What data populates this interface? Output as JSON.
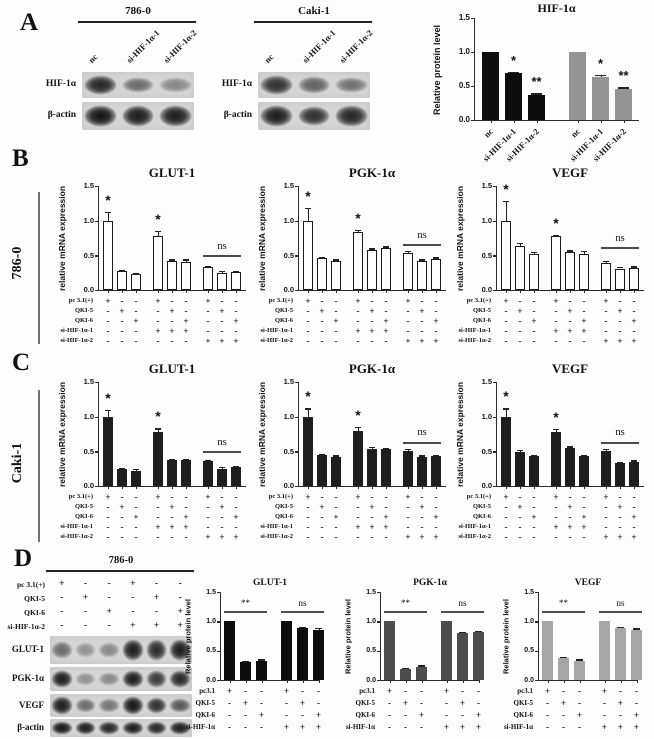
{
  "matrices": {
    "five_row": {
      "rows": [
        {
          "label": "pc 3.1(+)",
          "symbols": [
            "+",
            "-",
            "-",
            "+",
            "-",
            "-",
            "+",
            "-",
            "-"
          ]
        },
        {
          "label": "QKI-5",
          "symbols": [
            "-",
            "+",
            "-",
            "-",
            "+",
            "-",
            "-",
            "+",
            "-"
          ]
        },
        {
          "label": "QKI-6",
          "symbols": [
            "-",
            "-",
            "+",
            "-",
            "-",
            "+",
            "-",
            "-",
            "+"
          ]
        },
        {
          "label": "si-HIF-1α-1",
          "symbols": [
            "-",
            "-",
            "-",
            "+",
            "+",
            "+",
            "-",
            "-",
            "-"
          ]
        },
        {
          "label": "si-HIF-1α-2",
          "symbols": [
            "-",
            "-",
            "-",
            "-",
            "-",
            "-",
            "+",
            "+",
            "+"
          ]
        }
      ]
    },
    "four_row": {
      "rows": [
        {
          "label": "pc3.1",
          "symbols": [
            "+",
            "-",
            "-",
            "+",
            "-",
            "-"
          ]
        },
        {
          "label": "QKI-5",
          "symbols": [
            "-",
            "+",
            "-",
            "-",
            "+",
            "-"
          ]
        },
        {
          "label": "QKI-6",
          "symbols": [
            "-",
            "-",
            "+",
            "-",
            "-",
            "+"
          ]
        },
        {
          "label": "si-HIF-1α",
          "symbols": [
            "-",
            "-",
            "-",
            "+",
            "+",
            "+"
          ]
        }
      ]
    }
  },
  "chart_data": [
    {
      "type": "bar",
      "panel": "A",
      "title": "HIF-1α",
      "ylabel": "Relative protein level",
      "ylim": [
        0,
        1.5
      ],
      "yticks": [
        "0.0",
        "0.5",
        "1.0",
        "1.5"
      ],
      "group_size": 3,
      "values": [
        1.0,
        0.69,
        0.37,
        1.0,
        0.63,
        0.45
      ],
      "errors": [
        0,
        0.015,
        0.02,
        0,
        0.03,
        0.03
      ],
      "bar_colors": [
        "#0d0d0d",
        "#0d0d0d",
        "#0d0d0d",
        "#949494",
        "#949494",
        "#949494"
      ],
      "xlabels": [
        "nc",
        "si-HIF-1α-1",
        "si-HIF-1α-2",
        "nc",
        "si-HIF-1α-1",
        "si-HIF-1α-2"
      ],
      "annotations": [
        {
          "type": "star",
          "bar": 1,
          "text": "*"
        },
        {
          "type": "star",
          "bar": 2,
          "text": "**"
        },
        {
          "type": "star",
          "bar": 4,
          "text": "*"
        },
        {
          "type": "star",
          "bar": 5,
          "text": "**"
        }
      ]
    },
    {
      "type": "bar",
      "panel": "B",
      "cell_line": "786-0",
      "title": "GLUT-1",
      "ylabel": "relative mRNA expression",
      "ylim": [
        0,
        1.5
      ],
      "yticks": [
        "0.0",
        "0.5",
        "1.0",
        "1.5"
      ],
      "group_size": 3,
      "values": [
        1.0,
        0.27,
        0.23,
        0.78,
        0.42,
        0.4,
        0.33,
        0.25,
        0.26
      ],
      "errors": [
        0.13,
        0.02,
        0.02,
        0.07,
        0.02,
        0.04,
        0.02,
        0.03,
        0.02
      ],
      "bar_colors": "white",
      "matrix_ref": "five_row",
      "annotations": [
        {
          "type": "star",
          "bar": 0,
          "text": "*"
        },
        {
          "type": "star",
          "bar": 3,
          "text": "*"
        },
        {
          "type": "line",
          "from": 6,
          "to": 8,
          "y": 0.5,
          "text": "ns"
        }
      ]
    },
    {
      "type": "bar",
      "panel": "B",
      "cell_line": "786-0",
      "title": "PGK-1α",
      "ylabel": "relative mRNA expression",
      "ylim": [
        0,
        1.5
      ],
      "yticks": [
        "0.0",
        "0.5",
        "1.0",
        "1.5"
      ],
      "group_size": 3,
      "values": [
        1.0,
        0.46,
        0.42,
        0.83,
        0.58,
        0.6,
        0.53,
        0.42,
        0.45
      ],
      "errors": [
        0.18,
        0.02,
        0.02,
        0.04,
        0.02,
        0.03,
        0.03,
        0.02,
        0.02
      ],
      "bar_colors": "white",
      "matrix_ref": "five_row",
      "annotations": [
        {
          "type": "star",
          "bar": 0,
          "text": "*"
        },
        {
          "type": "star",
          "bar": 3,
          "text": "*"
        },
        {
          "type": "line",
          "from": 6,
          "to": 8,
          "y": 0.66,
          "text": "ns"
        }
      ]
    },
    {
      "type": "bar",
      "panel": "B",
      "cell_line": "786-0",
      "title": "VEGF",
      "ylabel": "relative mRNA expression",
      "ylim": [
        0,
        1.5
      ],
      "yticks": [
        "0.0",
        "0.5",
        "1.0",
        "1.5"
      ],
      "group_size": 3,
      "values": [
        1.0,
        0.63,
        0.52,
        0.78,
        0.55,
        0.52,
        0.39,
        0.31,
        0.32
      ],
      "errors": [
        0.28,
        0.05,
        0.03,
        0.02,
        0.02,
        0.04,
        0.03,
        0.02,
        0.02
      ],
      "bar_colors": "white",
      "matrix_ref": "five_row",
      "annotations": [
        {
          "type": "star",
          "bar": 0,
          "text": "*"
        },
        {
          "type": "star",
          "bar": 3,
          "text": "*"
        },
        {
          "type": "line",
          "from": 6,
          "to": 8,
          "y": 0.62,
          "text": "ns"
        }
      ]
    },
    {
      "type": "bar",
      "panel": "C",
      "cell_line": "Caki-1",
      "title": "GLUT-1",
      "ylabel": "relative mRNA expression",
      "ylim": [
        0,
        1.5
      ],
      "yticks": [
        "0.0",
        "0.5",
        "1.0",
        "1.5"
      ],
      "group_size": 3,
      "values": [
        1.0,
        0.24,
        0.22,
        0.78,
        0.38,
        0.38,
        0.36,
        0.25,
        0.27
      ],
      "errors": [
        0.1,
        0.02,
        0.03,
        0.05,
        0.01,
        0.01,
        0.02,
        0.03,
        0.02
      ],
      "bar_colors": "#1e1e1e",
      "matrix_ref": "five_row",
      "annotations": [
        {
          "type": "star",
          "bar": 0,
          "text": "*"
        },
        {
          "type": "star",
          "bar": 3,
          "text": "*"
        },
        {
          "type": "line",
          "from": 6,
          "to": 8,
          "y": 0.5,
          "text": "ns"
        }
      ]
    },
    {
      "type": "bar",
      "panel": "C",
      "cell_line": "Caki-1",
      "title": "PGK-1α",
      "ylabel": "relative mRNA expression",
      "ylim": [
        0,
        1.5
      ],
      "yticks": [
        "0.0",
        "0.5",
        "1.0",
        "1.5"
      ],
      "group_size": 3,
      "values": [
        1.0,
        0.44,
        0.42,
        0.79,
        0.54,
        0.53,
        0.51,
        0.42,
        0.43
      ],
      "errors": [
        0.12,
        0.02,
        0.02,
        0.06,
        0.02,
        0.02,
        0.03,
        0.02,
        0.02
      ],
      "bar_colors": "#1e1e1e",
      "matrix_ref": "five_row",
      "annotations": [
        {
          "type": "star",
          "bar": 0,
          "text": "*"
        },
        {
          "type": "star",
          "bar": 3,
          "text": "*"
        },
        {
          "type": "line",
          "from": 6,
          "to": 8,
          "y": 0.64,
          "text": "ns"
        }
      ]
    },
    {
      "type": "bar",
      "panel": "C",
      "cell_line": "Caki-1",
      "title": "VEGF",
      "ylabel": "relative mRNA expression",
      "ylim": [
        0,
        1.5
      ],
      "yticks": [
        "0.0",
        "0.5",
        "1.0",
        "1.5"
      ],
      "group_size": 3,
      "values": [
        1.0,
        0.49,
        0.43,
        0.78,
        0.55,
        0.43,
        0.5,
        0.33,
        0.34
      ],
      "errors": [
        0.12,
        0.03,
        0.02,
        0.04,
        0.02,
        0.02,
        0.03,
        0.02,
        0.03
      ],
      "bar_colors": "#1e1e1e",
      "matrix_ref": "five_row",
      "annotations": [
        {
          "type": "star",
          "bar": 0,
          "text": "*"
        },
        {
          "type": "star",
          "bar": 3,
          "text": "*"
        },
        {
          "type": "line",
          "from": 6,
          "to": 8,
          "y": 0.64,
          "text": "ns"
        }
      ]
    },
    {
      "type": "bar",
      "panel": "D",
      "cell_line": "786-0",
      "title": "GLUT-1",
      "ylabel": "Relative protein level",
      "ylim": [
        0,
        1.5
      ],
      "yticks": [
        "0.0",
        "0.5",
        "1.0",
        "1.5"
      ],
      "group_size": 3,
      "values": [
        1.0,
        0.31,
        0.33,
        1.0,
        0.88,
        0.85
      ],
      "errors": [
        0,
        0.02,
        0.02,
        0,
        0.02,
        0.04
      ],
      "bar_colors": "#0c0c0c",
      "matrix_ref": "four_row",
      "annotations": [
        {
          "type": "line",
          "from": 0,
          "to": 2,
          "y": 1.17,
          "text": "**"
        },
        {
          "type": "line",
          "from": 3,
          "to": 5,
          "y": 1.17,
          "text": "ns"
        }
      ]
    },
    {
      "type": "bar",
      "panel": "D",
      "cell_line": "786-0",
      "title": "PGK-1α",
      "ylabel": "Relative protein level",
      "ylim": [
        0,
        1.5
      ],
      "yticks": [
        "0.0",
        "0.5",
        "1.0",
        "1.5"
      ],
      "group_size": 3,
      "values": [
        1.0,
        0.19,
        0.23,
        1.0,
        0.8,
        0.82
      ],
      "errors": [
        0,
        0.01,
        0.02,
        0,
        0.02,
        0.02
      ],
      "bar_colors": "#4d4d4d",
      "matrix_ref": "four_row",
      "annotations": [
        {
          "type": "line",
          "from": 0,
          "to": 2,
          "y": 1.17,
          "text": "**"
        },
        {
          "type": "line",
          "from": 3,
          "to": 5,
          "y": 1.17,
          "text": "ns"
        }
      ]
    },
    {
      "type": "bar",
      "panel": "D",
      "cell_line": "786-0",
      "title": "VEGF",
      "ylabel": "Relative protein level",
      "ylim": [
        0,
        1.5
      ],
      "yticks": [
        "0.0",
        "0.5",
        "1.0",
        "1.5"
      ],
      "group_size": 3,
      "values": [
        1.0,
        0.38,
        0.33,
        1.0,
        0.88,
        0.85
      ],
      "errors": [
        0,
        0.02,
        0.02,
        0,
        0.02,
        0.03
      ],
      "bar_colors": "#a6a6a6",
      "matrix_ref": "four_row",
      "annotations": [
        {
          "type": "line",
          "from": 0,
          "to": 2,
          "y": 1.17,
          "text": "**"
        },
        {
          "type": "line",
          "from": 3,
          "to": 5,
          "y": 1.17,
          "text": "ns"
        }
      ]
    }
  ],
  "panels": {
    "A": {
      "label": "A",
      "blots": [
        {
          "cell_line": "786-0",
          "lane_labels": [
            "nc",
            "si-HIF-1α-1",
            "si-HIF-1α-2"
          ],
          "rows": [
            {
              "label": "HIF-1α",
              "intensities": [
                0.9,
                0.55,
                0.4
              ]
            },
            {
              "label": "β-actin",
              "intensities": [
                1.0,
                0.95,
                0.95
              ]
            }
          ]
        },
        {
          "cell_line": "Caki-1",
          "lane_labels": [
            "nc",
            "si-HIF-1α-1",
            "si-HIF-1α-2"
          ],
          "rows": [
            {
              "label": "HIF-1α",
              "intensities": [
                0.85,
                0.6,
                0.52
              ]
            },
            {
              "label": "β-actin",
              "intensities": [
                0.95,
                0.85,
                0.9
              ]
            }
          ]
        }
      ],
      "chart": 0
    },
    "B": {
      "label": "B",
      "cell_line": "786-0",
      "charts": [
        1,
        2,
        3
      ]
    },
    "C": {
      "label": "C",
      "cell_line": "Caki-1",
      "charts": [
        4,
        5,
        6
      ]
    },
    "D": {
      "label": "D",
      "blot": {
        "cell_line": "786-0",
        "matrix": {
          "rows": [
            {
              "label": "pc 3.1(+)",
              "symbols": [
                "+",
                "-",
                "-",
                "+",
                "-",
                "-"
              ]
            },
            {
              "label": "QKI-5",
              "symbols": [
                "-",
                "+",
                "-",
                "-",
                "+",
                "-"
              ]
            },
            {
              "label": "QKI-6",
              "symbols": [
                "-",
                "-",
                "+",
                "-",
                "-",
                "+"
              ]
            },
            {
              "label": "si-HIF-1α-2",
              "symbols": [
                "-",
                "-",
                "-",
                "+",
                "+",
                "+"
              ]
            }
          ]
        },
        "rows": [
          {
            "label": "GLUT-1",
            "intensities": [
              0.55,
              0.35,
              0.4,
              0.95,
              0.88,
              0.95
            ]
          },
          {
            "label": "PGK-1α",
            "intensities": [
              0.95,
              0.35,
              0.4,
              0.95,
              0.8,
              0.9
            ]
          },
          {
            "label": "VEGF",
            "intensities": [
              0.95,
              0.55,
              0.5,
              0.98,
              0.85,
              0.65
            ]
          },
          {
            "label": "β-actin",
            "intensities": [
              0.98,
              0.95,
              0.9,
              0.95,
              0.9,
              0.95
            ]
          }
        ]
      },
      "charts": [
        7,
        8,
        9
      ]
    }
  }
}
